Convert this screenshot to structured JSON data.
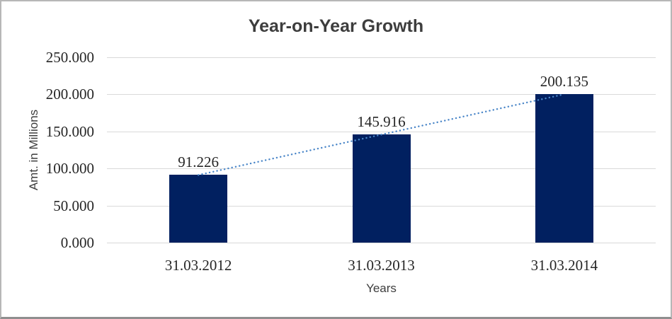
{
  "chart_data": {
    "type": "bar",
    "title": "Year-on-Year Growth",
    "xlabel": "Years",
    "ylabel": "Amt. in Millions",
    "categories": [
      "31.03.2012",
      "31.03.2013",
      "31.03.2014"
    ],
    "values": [
      91.226,
      145.916,
      200.135
    ],
    "data_labels": [
      "91.226",
      "145.916",
      "200.135"
    ],
    "ylim": [
      0,
      250
    ],
    "ytick_step": 50,
    "ytick_labels": [
      "0.000",
      "50.000",
      "100.000",
      "150.000",
      "200.000",
      "250.000"
    ],
    "grid": true,
    "legend": "none",
    "trendline": {
      "type": "linear",
      "style": "dotted"
    },
    "colors": {
      "bar": "#012060",
      "trendline": "#4a86c8",
      "gridline": "#d9d9d9",
      "title_text": "#3d3d3d",
      "axis_title_text": "#3d3d3d",
      "tick_text": "#262626",
      "frame_border": "#b7b7b7",
      "background": "#ffffff"
    }
  }
}
